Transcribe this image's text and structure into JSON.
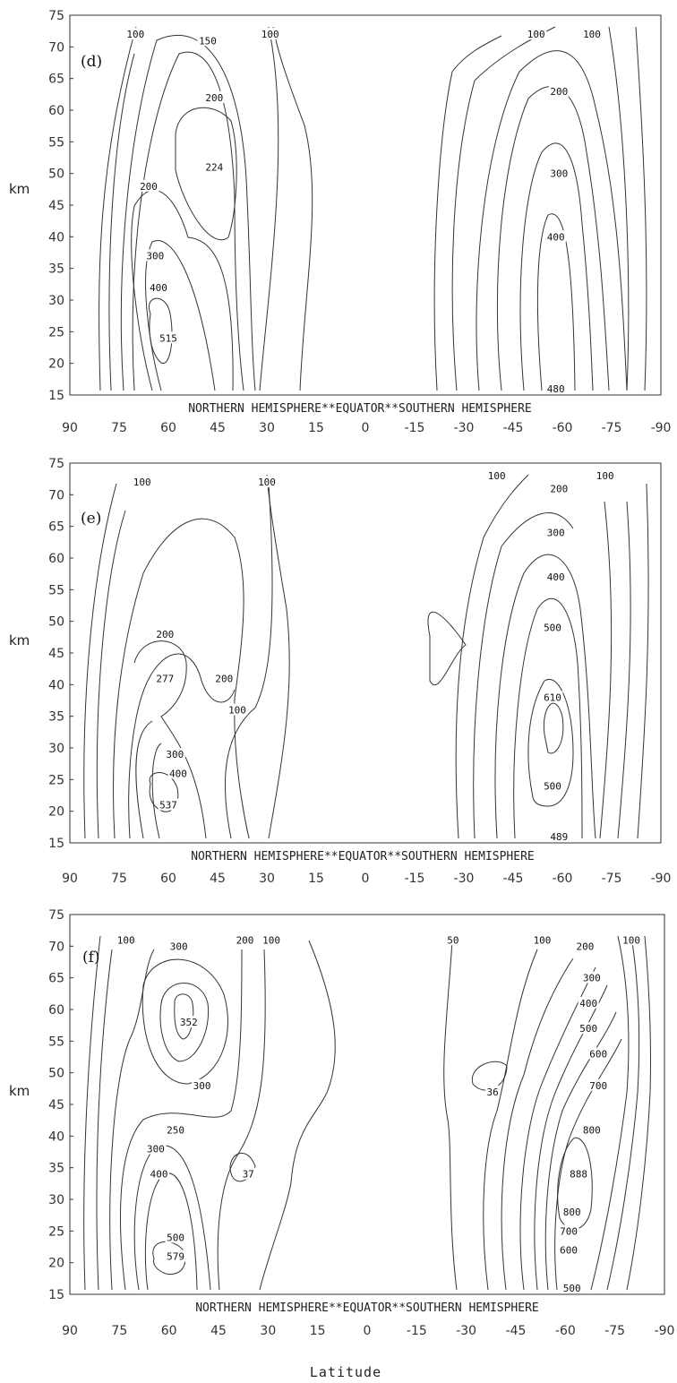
{
  "chart_data": [
    {
      "type": "contour",
      "panel": "(d)",
      "ylabel": "km",
      "xlabel": "Latitude",
      "hemisphere_label": "NORTHERN HEMISPHERE**EQUATOR**SOUTHERN HEMISPHERE",
      "x_ticks": [
        "90",
        "75",
        "60",
        "45",
        "30",
        "15",
        "0",
        "-15",
        "-30",
        "-45",
        "-60",
        "-75",
        "-90"
      ],
      "y_ticks": [
        "75",
        "70",
        "65",
        "60",
        "55",
        "50",
        "45",
        "40",
        "35",
        "30",
        "25",
        "20",
        "15"
      ],
      "xlim": [
        90,
        -90
      ],
      "ylim": [
        15,
        75
      ],
      "contour_labels": [
        {
          "text": "100",
          "lat": 70,
          "km": 72
        },
        {
          "text": "150",
          "lat": 48,
          "km": 71
        },
        {
          "text": "100",
          "lat": 29,
          "km": 72
        },
        {
          "text": "200",
          "lat": 46,
          "km": 62
        },
        {
          "text": "224",
          "lat": 46,
          "km": 51
        },
        {
          "text": "200",
          "lat": 66,
          "km": 48
        },
        {
          "text": "300",
          "lat": 64,
          "km": 37
        },
        {
          "text": "400",
          "lat": 63,
          "km": 32
        },
        {
          "text": "515",
          "lat": 60,
          "km": 24
        },
        {
          "text": "100",
          "lat": -52,
          "km": 72
        },
        {
          "text": "100",
          "lat": -69,
          "km": 72
        },
        {
          "text": "200",
          "lat": -59,
          "km": 63
        },
        {
          "text": "300",
          "lat": -59,
          "km": 50
        },
        {
          "text": "400",
          "lat": -58,
          "km": 40
        },
        {
          "text": "480",
          "lat": -58,
          "km": 16
        }
      ]
    },
    {
      "type": "contour",
      "panel": "(e)",
      "ylabel": "km",
      "xlabel": "Latitude",
      "hemisphere_label": "NORTHERN HEMISPHERE**EQUATOR**SOUTHERN HEMISPHERE",
      "x_ticks": [
        "90",
        "75",
        "60",
        "45",
        "30",
        "15",
        "0",
        "-15",
        "-30",
        "-45",
        "-60",
        "-75",
        "-90"
      ],
      "y_ticks": [
        "75",
        "70",
        "65",
        "60",
        "55",
        "50",
        "45",
        "40",
        "35",
        "30",
        "25",
        "20",
        "15"
      ],
      "xlim": [
        90,
        -90
      ],
      "ylim": [
        15,
        75
      ],
      "contour_labels": [
        {
          "text": "100",
          "lat": 68,
          "km": 72
        },
        {
          "text": "100",
          "lat": 30,
          "km": 72
        },
        {
          "text": "200",
          "lat": 61,
          "km": 48
        },
        {
          "text": "277",
          "lat": 61,
          "km": 41
        },
        {
          "text": "200",
          "lat": 43,
          "km": 41
        },
        {
          "text": "100",
          "lat": 39,
          "km": 36
        },
        {
          "text": "300",
          "lat": 58,
          "km": 29
        },
        {
          "text": "400",
          "lat": 57,
          "km": 26
        },
        {
          "text": "537",
          "lat": 60,
          "km": 21
        },
        {
          "text": "100",
          "lat": -40,
          "km": 73
        },
        {
          "text": "200",
          "lat": -59,
          "km": 71
        },
        {
          "text": "100",
          "lat": -73,
          "km": 73
        },
        {
          "text": "300",
          "lat": -58,
          "km": 64
        },
        {
          "text": "400",
          "lat": -58,
          "km": 57
        },
        {
          "text": "500",
          "lat": -57,
          "km": 49
        },
        {
          "text": "610",
          "lat": -57,
          "km": 38
        },
        {
          "text": "500",
          "lat": -57,
          "km": 24
        },
        {
          "text": "489",
          "lat": -59,
          "km": 16
        }
      ]
    },
    {
      "type": "contour",
      "panel": "(f)",
      "ylabel": "km",
      "xlabel": "Latitude",
      "hemisphere_label": "NORTHERN HEMISPHERE**EQUATOR**SOUTHERN HEMISPHERE",
      "x_ticks": [
        "90",
        "75",
        "60",
        "45",
        "30",
        "15",
        "0",
        "-15",
        "-30",
        "-45",
        "-60",
        "-75",
        "-90"
      ],
      "y_ticks": [
        "75",
        "70",
        "65",
        "60",
        "55",
        "50",
        "45",
        "40",
        "35",
        "30",
        "25",
        "20",
        "15"
      ],
      "xlim": [
        90,
        -90
      ],
      "ylim": [
        15,
        75
      ],
      "contour_labels": [
        {
          "text": "100",
          "lat": 73,
          "km": 71
        },
        {
          "text": "300",
          "lat": 57,
          "km": 70
        },
        {
          "text": "200",
          "lat": 37,
          "km": 71
        },
        {
          "text": "100",
          "lat": 29,
          "km": 71
        },
        {
          "text": "352",
          "lat": 54,
          "km": 58
        },
        {
          "text": "300",
          "lat": 50,
          "km": 48
        },
        {
          "text": "250",
          "lat": 58,
          "km": 41
        },
        {
          "text": "300",
          "lat": 64,
          "km": 38
        },
        {
          "text": "400",
          "lat": 63,
          "km": 34
        },
        {
          "text": "37",
          "lat": 36,
          "km": 34
        },
        {
          "text": "500",
          "lat": 58,
          "km": 24
        },
        {
          "text": "579",
          "lat": 58,
          "km": 21
        },
        {
          "text": "50",
          "lat": -26,
          "km": 71
        },
        {
          "text": "100",
          "lat": -53,
          "km": 71
        },
        {
          "text": "200",
          "lat": -66,
          "km": 70
        },
        {
          "text": "100",
          "lat": -80,
          "km": 71
        },
        {
          "text": "300",
          "lat": -68,
          "km": 65
        },
        {
          "text": "400",
          "lat": -67,
          "km": 61
        },
        {
          "text": "500",
          "lat": -67,
          "km": 57
        },
        {
          "text": "600",
          "lat": -70,
          "km": 53
        },
        {
          "text": "700",
          "lat": -70,
          "km": 48
        },
        {
          "text": "800",
          "lat": -68,
          "km": 41
        },
        {
          "text": "36",
          "lat": -38,
          "km": 47
        },
        {
          "text": "888",
          "lat": -64,
          "km": 34
        },
        {
          "text": "800",
          "lat": -62,
          "km": 28
        },
        {
          "text": "700",
          "lat": -61,
          "km": 25
        },
        {
          "text": "600",
          "lat": -61,
          "km": 22
        },
        {
          "text": "500",
          "lat": -62,
          "km": 16
        }
      ]
    }
  ]
}
